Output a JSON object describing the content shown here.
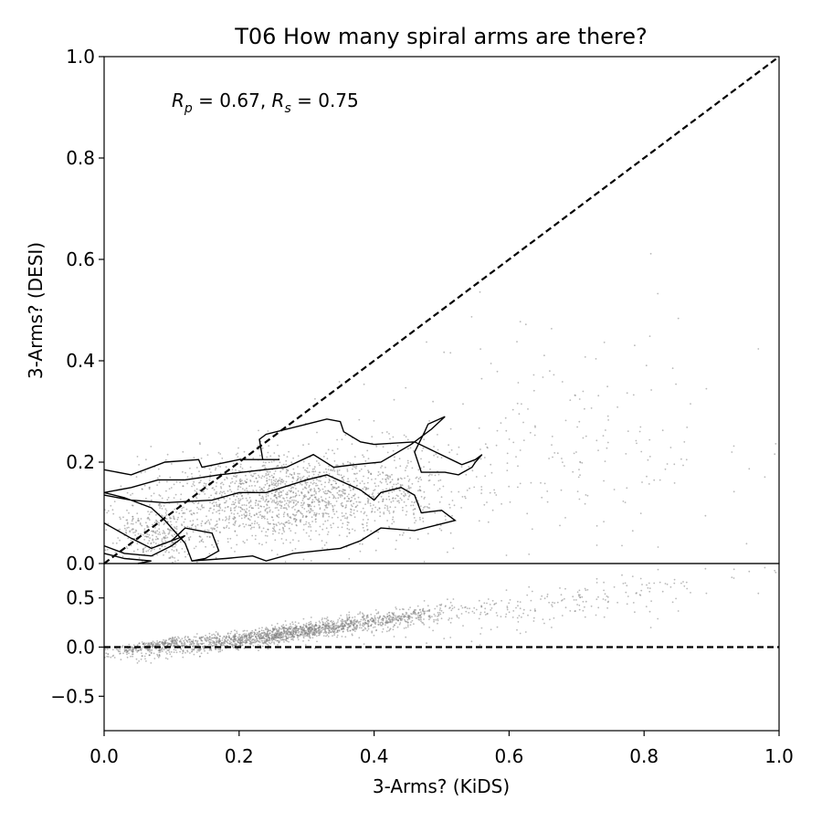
{
  "chart_data": {
    "type": "scatter",
    "title": "T06 How many spiral arms are there?",
    "annotation_text": "R_p = 0.67, R_s = 0.75",
    "annotation": {
      "Rp": 0.67,
      "Rs": 0.75,
      "Rp_label": "0.67",
      "Rs_label": "0.75"
    },
    "xlabel": "3-Arms? (KiDS)",
    "ylabel": "3-Arms? (DESI)",
    "top_panel": {
      "xlim": [
        0,
        1
      ],
      "ylim": [
        0,
        1
      ],
      "yticks": [
        0.0,
        0.2,
        0.4,
        0.6,
        0.8,
        1.0
      ],
      "ytick_labels": [
        "0.0",
        "0.2",
        "0.4",
        "0.6",
        "0.8",
        "1.0"
      ],
      "reference_line": "y = x (dashed)",
      "contours": [
        [
          [
            0.0,
            0.185
          ],
          [
            0.04,
            0.175
          ],
          [
            0.09,
            0.2
          ],
          [
            0.14,
            0.205
          ],
          [
            0.145,
            0.19
          ],
          [
            0.2,
            0.205
          ],
          [
            0.26,
            0.205
          ],
          [
            0.235,
            0.205
          ],
          [
            0.23,
            0.245
          ],
          [
            0.24,
            0.255
          ],
          [
            0.3,
            0.275
          ],
          [
            0.33,
            0.285
          ],
          [
            0.35,
            0.28
          ],
          [
            0.355,
            0.26
          ],
          [
            0.38,
            0.24
          ],
          [
            0.4,
            0.235
          ],
          [
            0.46,
            0.24
          ],
          [
            0.53,
            0.195
          ],
          [
            0.55,
            0.205
          ],
          [
            0.56,
            0.215
          ],
          [
            0.55,
            0.2
          ],
          [
            0.545,
            0.19
          ],
          [
            0.525,
            0.175
          ],
          [
            0.505,
            0.18
          ],
          [
            0.47,
            0.18
          ],
          [
            0.46,
            0.22
          ],
          [
            0.475,
            0.26
          ],
          [
            0.48,
            0.275
          ],
          [
            0.505,
            0.29
          ],
          [
            0.485,
            0.265
          ],
          [
            0.455,
            0.235
          ],
          [
            0.41,
            0.2
          ],
          [
            0.37,
            0.195
          ],
          [
            0.34,
            0.19
          ],
          [
            0.31,
            0.215
          ],
          [
            0.27,
            0.19
          ],
          [
            0.17,
            0.175
          ],
          [
            0.12,
            0.165
          ],
          [
            0.08,
            0.165
          ],
          [
            0.04,
            0.15
          ],
          [
            0.0,
            0.14
          ]
        ],
        [
          [
            0.0,
            0.14
          ],
          [
            0.03,
            0.13
          ],
          [
            0.07,
            0.11
          ],
          [
            0.09,
            0.085
          ],
          [
            0.12,
            0.04
          ],
          [
            0.13,
            0.005
          ],
          [
            0.18,
            0.01
          ],
          [
            0.22,
            0.015
          ],
          [
            0.24,
            0.005
          ],
          [
            0.28,
            0.02
          ],
          [
            0.35,
            0.03
          ],
          [
            0.38,
            0.045
          ],
          [
            0.41,
            0.07
          ],
          [
            0.46,
            0.065
          ],
          [
            0.52,
            0.085
          ],
          [
            0.5,
            0.105
          ],
          [
            0.47,
            0.1
          ],
          [
            0.46,
            0.135
          ],
          [
            0.44,
            0.15
          ],
          [
            0.41,
            0.14
          ],
          [
            0.4,
            0.125
          ],
          [
            0.38,
            0.145
          ],
          [
            0.33,
            0.175
          ],
          [
            0.3,
            0.165
          ],
          [
            0.24,
            0.14
          ],
          [
            0.2,
            0.14
          ],
          [
            0.16,
            0.125
          ],
          [
            0.09,
            0.12
          ],
          [
            0.04,
            0.125
          ],
          [
            0.0,
            0.135
          ]
        ],
        [
          [
            0.0,
            0.08
          ],
          [
            0.04,
            0.05
          ],
          [
            0.07,
            0.03
          ],
          [
            0.09,
            0.04
          ],
          [
            0.12,
            0.055
          ],
          [
            0.1,
            0.035
          ],
          [
            0.07,
            0.015
          ],
          [
            0.03,
            0.02
          ],
          [
            0.0,
            0.035
          ]
        ],
        [
          [
            0.0,
            0.02
          ],
          [
            0.03,
            0.01
          ],
          [
            0.07,
            0.005
          ],
          [
            0.05,
            0.0
          ]
        ],
        [
          [
            0.1,
            0.045
          ],
          [
            0.12,
            0.07
          ],
          [
            0.14,
            0.065
          ],
          [
            0.16,
            0.06
          ],
          [
            0.17,
            0.025
          ],
          [
            0.15,
            0.01
          ],
          [
            0.13,
            0.005
          ]
        ]
      ]
    },
    "bottom_panel": {
      "xlim": [
        0,
        1
      ],
      "ylim": [
        -0.85,
        0.85
      ],
      "yticks": [
        -0.5,
        0.0,
        0.5
      ],
      "ytick_labels": [
        "−0.5",
        "0.0",
        "0.5"
      ],
      "reference_line": "y = 0 (dashed)"
    },
    "xticks": [
      0.0,
      0.2,
      0.4,
      0.6,
      0.8,
      1.0
    ],
    "xtick_labels": [
      "0.0",
      "0.2",
      "0.4",
      "0.6",
      "0.8",
      "1.0"
    ],
    "scatter_clusters": [
      {
        "x_mean": 0.26,
        "y_mean": 0.13,
        "x_sd": 0.09,
        "y_sd": 0.045,
        "count": 1400
      },
      {
        "x_mean": 0.08,
        "y_mean": 0.06,
        "x_sd": 0.04,
        "y_sd": 0.03,
        "count": 350
      },
      {
        "x_mean": 0.43,
        "y_mean": 0.15,
        "x_sd": 0.06,
        "y_sd": 0.05,
        "count": 300
      },
      {
        "x_mean": 0.68,
        "y_mean": 0.22,
        "x_sd": 0.13,
        "y_sd": 0.13,
        "count": 220
      }
    ],
    "colors": {
      "points": "#808080",
      "lines": "#000000",
      "background": "#ffffff"
    }
  }
}
